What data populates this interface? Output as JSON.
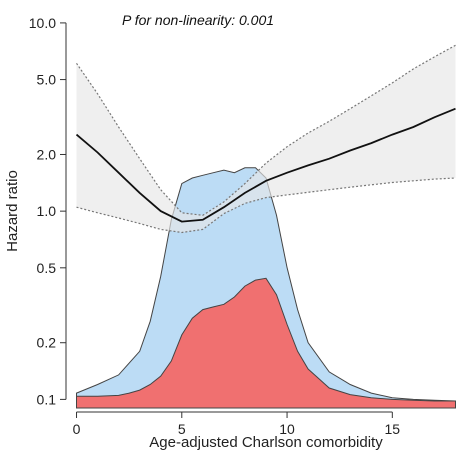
{
  "chart_data": {
    "type": "line",
    "annotation": "P for non-linearity: 0.001",
    "xlabel": "Age-adjusted Charlson comorbidity",
    "ylabel": "Hazard ratio",
    "xlim": [
      -0.5,
      18.5
    ],
    "ylim": [
      0.09,
      12
    ],
    "y_scale": "log",
    "x_ticks": [
      0,
      5,
      10,
      15
    ],
    "x_tick_labels": [
      "0",
      "5",
      "10",
      "15"
    ],
    "y_ticks": [
      0.1,
      0.2,
      0.5,
      1.0,
      2.0,
      5.0,
      10.0
    ],
    "y_tick_labels": [
      "0.1",
      "0.2",
      "0.5",
      "1.0",
      "2.0",
      "5.0",
      "10.0"
    ],
    "grid": false,
    "colors": {
      "hr_line": "#111111",
      "ci_fill": "#e6e6e6",
      "ci_border": "#777777",
      "overall_distribution": "#bcdcf5",
      "event_distribution": "#f07070"
    },
    "series": [
      {
        "role": "hazard_ratio",
        "x": [
          0,
          1,
          2,
          3,
          4,
          5,
          6,
          7,
          8,
          9,
          10,
          11,
          12,
          13,
          14,
          15,
          16,
          17,
          18
        ],
        "y": [
          2.55,
          2.05,
          1.6,
          1.25,
          1.0,
          0.88,
          0.9,
          1.05,
          1.25,
          1.45,
          1.6,
          1.75,
          1.9,
          2.1,
          2.3,
          2.55,
          2.8,
          3.15,
          3.5
        ]
      },
      {
        "role": "ci_upper",
        "x": [
          0,
          1,
          2,
          3,
          4,
          5,
          6,
          7,
          8,
          9,
          10,
          11,
          12,
          13,
          14,
          15,
          16,
          17,
          18
        ],
        "y": [
          6.1,
          4.2,
          2.8,
          1.9,
          1.3,
          0.98,
          0.95,
          1.12,
          1.4,
          1.8,
          2.2,
          2.6,
          3.0,
          3.5,
          4.1,
          4.8,
          5.7,
          6.6,
          7.6
        ]
      },
      {
        "role": "ci_lower",
        "x": [
          0,
          1,
          2,
          3,
          4,
          5,
          6,
          7,
          8,
          9,
          10,
          11,
          12,
          13,
          14,
          15,
          16,
          17,
          18
        ],
        "y": [
          1.05,
          0.98,
          0.92,
          0.86,
          0.8,
          0.77,
          0.8,
          0.97,
          1.1,
          1.18,
          1.22,
          1.26,
          1.3,
          1.34,
          1.38,
          1.42,
          1.45,
          1.48,
          1.5
        ]
      },
      {
        "role": "overall_distribution",
        "x": [
          0,
          1,
          2,
          3,
          3.5,
          4,
          4.5,
          5,
          5.5,
          6,
          6.5,
          7,
          7.5,
          8,
          8.5,
          9,
          9.5,
          10,
          10.5,
          11,
          12,
          13,
          14,
          15,
          16,
          17,
          18
        ],
        "y": [
          0.108,
          0.12,
          0.135,
          0.18,
          0.26,
          0.45,
          0.9,
          1.4,
          1.5,
          1.55,
          1.6,
          1.65,
          1.6,
          1.7,
          1.7,
          1.5,
          0.95,
          0.5,
          0.3,
          0.2,
          0.14,
          0.12,
          0.108,
          0.102,
          0.1,
          0.099,
          0.098
        ]
      },
      {
        "role": "event_distribution",
        "x": [
          0,
          1,
          2,
          2.5,
          3,
          3.5,
          4,
          4.5,
          5,
          5.5,
          6,
          6.5,
          7,
          7.5,
          8,
          8.5,
          9,
          9.5,
          10,
          10.5,
          11,
          12,
          13,
          14,
          15,
          16,
          17,
          18
        ],
        "y": [
          0.104,
          0.104,
          0.105,
          0.108,
          0.112,
          0.12,
          0.133,
          0.16,
          0.22,
          0.27,
          0.3,
          0.31,
          0.32,
          0.35,
          0.4,
          0.43,
          0.44,
          0.36,
          0.25,
          0.18,
          0.145,
          0.115,
          0.106,
          0.102,
          0.1,
          0.099,
          0.098,
          0.098
        ]
      }
    ]
  }
}
